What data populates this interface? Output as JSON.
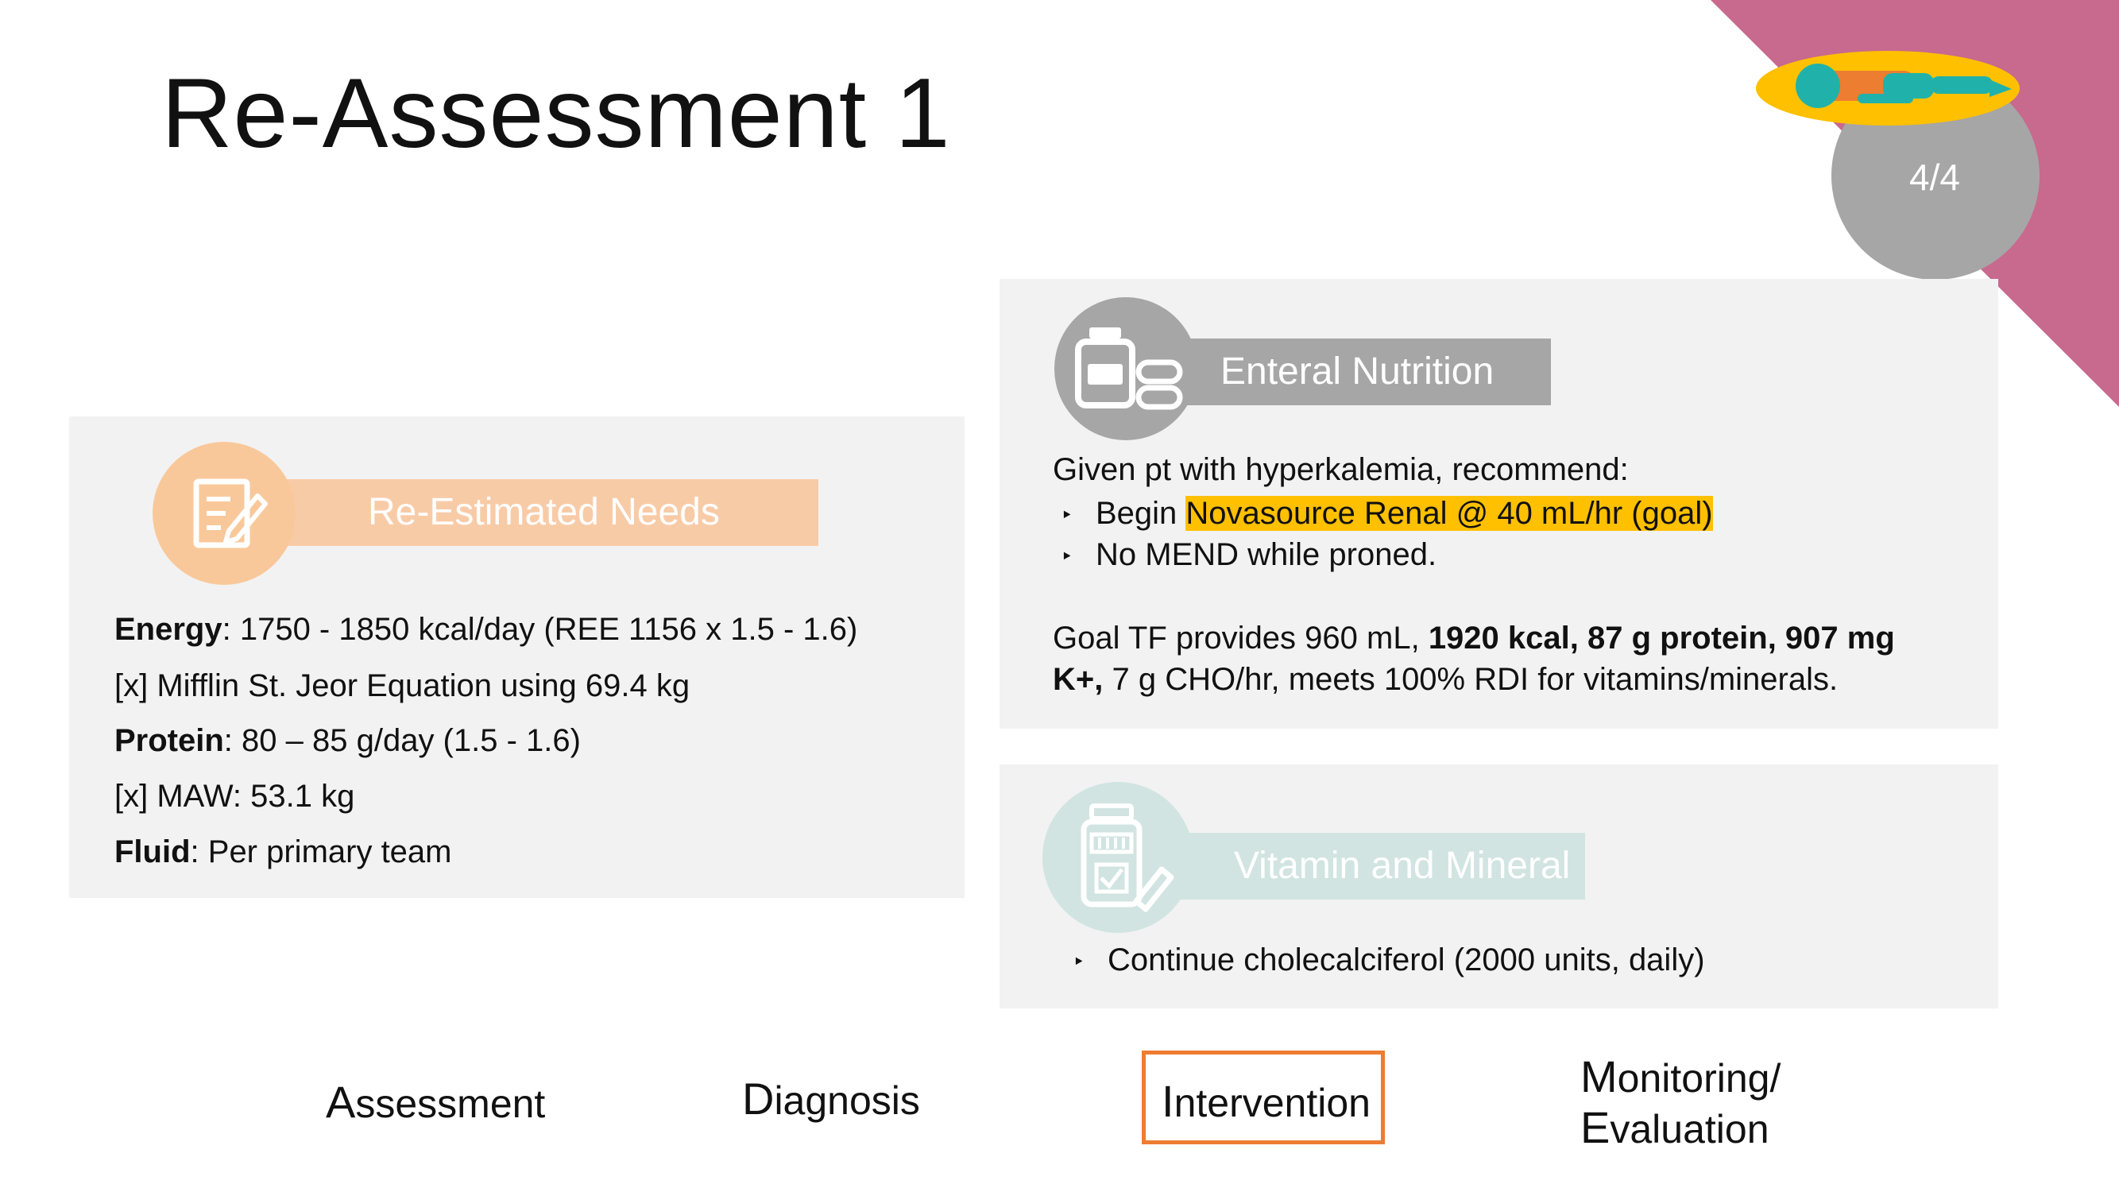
{
  "title": "Re-Assessment 1",
  "badge": {
    "text": "4/4"
  },
  "colors": {
    "corner": "#c8698e",
    "badge": "#a6a6a6",
    "needs_accent": "#f8cba7",
    "needs_circle": "#f9c89a",
    "enteral_accent": "#a6a6a6",
    "vitamin_accent": "#d1e4e1",
    "highlight": "#ffc000",
    "nav_active_border": "#ed7d31"
  },
  "needs": {
    "heading": "Re-Estimated Needs",
    "icon": "notepad-pencil-icon",
    "energy_label": "Energy",
    "energy_value": ": 1750 - 1850 kcal/day (REE 1156 x 1.5 - 1.6)",
    "energy_note": "[x] Mifflin St. Jeor Equation using 69.4 kg",
    "protein_label": "Protein",
    "protein_value": ":  80 – 85 g/day (1.5 - 1.6)",
    "protein_note": "[x] MAW: 53.1 kg",
    "fluid_label": "Fluid",
    "fluid_value": ": Per primary team"
  },
  "enteral": {
    "heading": "Enteral Nutrition",
    "icon": "bottle-pills-icon",
    "intro": "Given pt with hyperkalemia, recommend:",
    "bullet_glyph": "‣",
    "bullet1_prefix": "Begin ",
    "bullet1_highlight": "Novasource Renal @ 40 mL/hr (goal)",
    "bullet2": "No MEND while proned.",
    "goal_line1_plain": "Goal TF provides 960 mL, ",
    "goal_line1_bold": "1920 kcal, 87 g protein, 907 mg",
    "goal_line2_bold": "K+,",
    "goal_line2_plain": " 7 g CHO/hr, meets 100% RDI for vitamins/minerals."
  },
  "vitamin": {
    "heading": "Vitamin and Mineral",
    "icon": "supplement-bottle-icon",
    "bullet_glyph": "‣",
    "bullet1": "Continue cholecalciferol (2000 units, daily)"
  },
  "nav": {
    "assessment_first": "A",
    "assessment_rest": "ssessment",
    "diagnosis_first": "D",
    "diagnosis_rest": "iagnosis",
    "intervention_first": "I",
    "intervention_rest": "ntervention",
    "monitoring_first": "M",
    "monitoring_rest": "onitoring/",
    "evaluation_first": "E",
    "evaluation_rest": "valuation"
  }
}
